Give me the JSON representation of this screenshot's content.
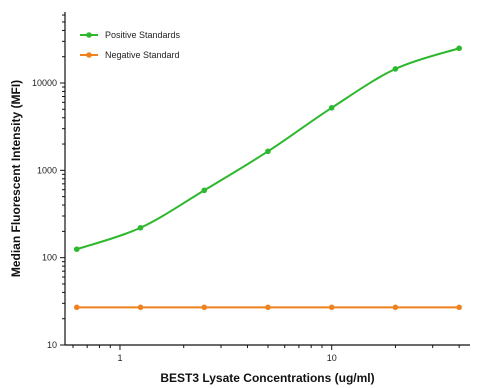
{
  "chart_data": {
    "type": "line",
    "title": "",
    "xlabel": "BEST3 Lysate Concentrations (ug/ml)",
    "ylabel": "Median Fluorescent Intensity (MFI)",
    "x_scale": "log",
    "y_scale": "log",
    "xlim": [
      0.55,
      45
    ],
    "ylim": [
      10,
      65000
    ],
    "x_ticks": [
      1,
      10
    ],
    "x_tick_labels": [
      "1",
      "10"
    ],
    "y_ticks": [
      10,
      100,
      1000,
      10000
    ],
    "y_tick_labels": [
      "10",
      "100",
      "1000",
      "10000"
    ],
    "grid": false,
    "legend_position": "top-left",
    "series": [
      {
        "name": "Positive Standards",
        "color": "#2db82d",
        "marker": "circle",
        "x": [
          0.625,
          1.25,
          2.5,
          5,
          10,
          20,
          40
        ],
        "y": [
          125,
          220,
          590,
          1650,
          5200,
          14500,
          25000
        ]
      },
      {
        "name": "Negative Standard",
        "color": "#f0821e",
        "marker": "circle",
        "x": [
          0.625,
          1.25,
          2.5,
          5,
          10,
          20,
          40
        ],
        "y": [
          27,
          27,
          27,
          27,
          27,
          27,
          27
        ]
      }
    ]
  }
}
